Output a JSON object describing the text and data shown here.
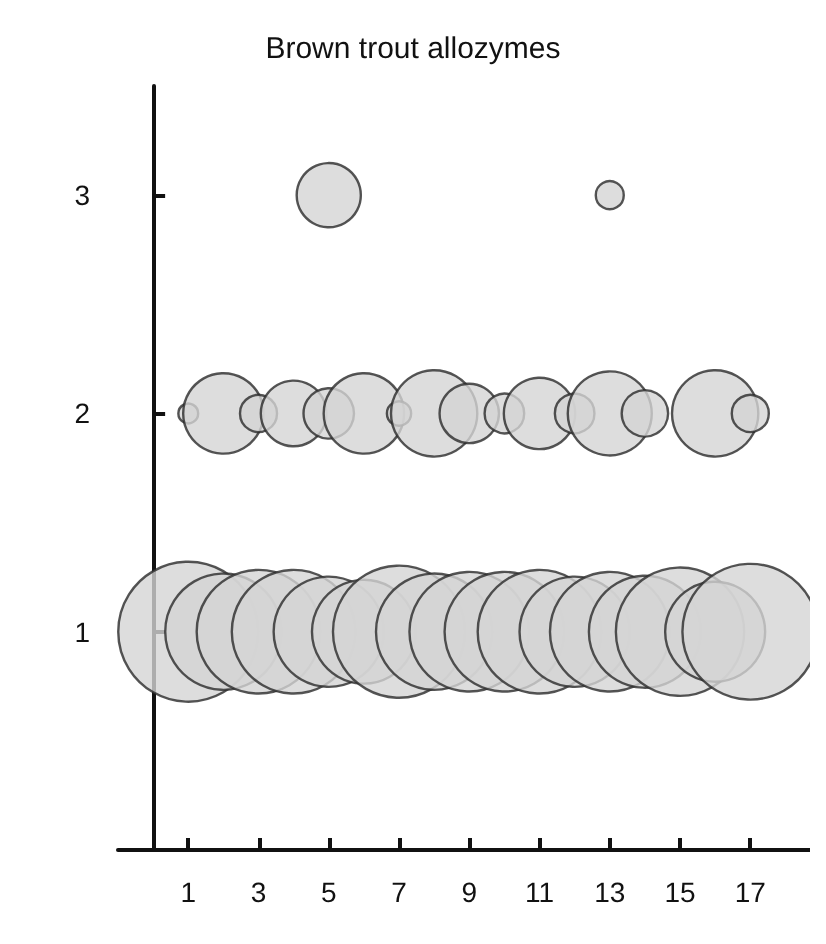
{
  "chart_data": {
    "type": "bubble",
    "title": "Brown trout allozymes",
    "series": [
      {
        "color": "#d4d4d4",
        "x": [
          1,
          2,
          3,
          4,
          5,
          6,
          7,
          8,
          9,
          10,
          11,
          12,
          13,
          14,
          15,
          16,
          17,
          1,
          2,
          3,
          4,
          5,
          6,
          7,
          8,
          9,
          10,
          11,
          12,
          13,
          14,
          16,
          17,
          5,
          13
        ],
        "values": [
          1,
          1,
          1,
          1,
          1,
          1,
          1,
          1,
          1,
          1,
          1,
          1,
          1,
          1,
          1,
          1,
          1,
          2,
          2,
          2,
          2,
          2,
          2,
          2,
          2,
          2,
          2,
          2,
          2,
          2,
          2,
          2,
          2,
          3,
          3
        ],
        "sizes": [
          1,
          0.69,
          0.78,
          0.78,
          0.62,
          0.55,
          0.89,
          0.69,
          0.73,
          0.73,
          0.78,
          0.62,
          0.73,
          0.64,
          0.84,
          0.51,
          0.94,
          0.02,
          0.33,
          0.07,
          0.22,
          0.13,
          0.33,
          0.03,
          0.38,
          0.18,
          0.08,
          0.26,
          0.08,
          0.36,
          0.11,
          0.38,
          0.07,
          0.21,
          0.04
        ]
      }
    ],
    "xlim": [
      -1,
      18.7
    ],
    "xticks": [
      1,
      3,
      5,
      7,
      9,
      11,
      13,
      15,
      17
    ],
    "ylim": [
      0,
      3.5
    ],
    "yticks": [
      1,
      2,
      3
    ],
    "grid": false
  }
}
